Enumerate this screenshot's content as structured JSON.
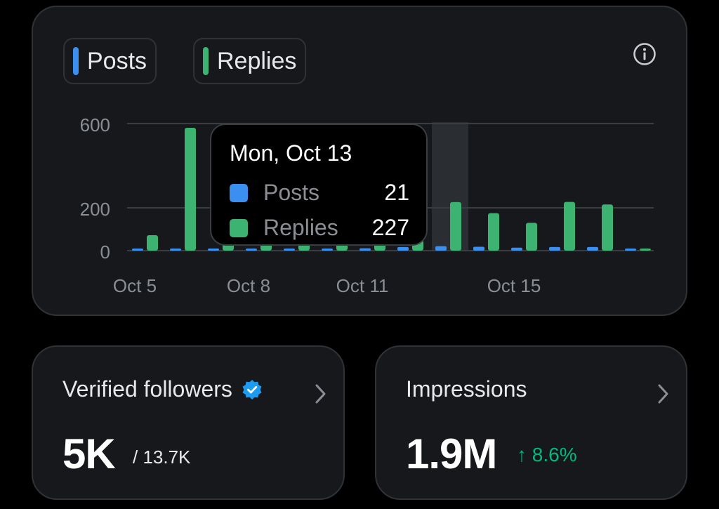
{
  "chart": {
    "legend": [
      {
        "label": "Posts",
        "color": "#3b8ff0"
      },
      {
        "label": "Replies",
        "color": "#3cb371"
      }
    ],
    "y_ticks": [
      "600",
      "200",
      "0"
    ],
    "x_ticks": [
      "Oct 5",
      "Oct 8",
      "Oct 11",
      "Oct 15"
    ],
    "info_icon": "info-icon"
  },
  "chart_data": {
    "type": "bar",
    "categories": [
      "Oct 5",
      "Oct 6",
      "Oct 7",
      "Oct 8",
      "Oct 9",
      "Oct 10",
      "Oct 11",
      "Oct 12",
      "Oct 13",
      "Oct 14",
      "Oct 15",
      "Oct 16",
      "Oct 17",
      "Oct 18"
    ],
    "series": [
      {
        "name": "Posts",
        "values": [
          3,
          3,
          3,
          5,
          10,
          9,
          11,
          17,
          21,
          18,
          14,
          17,
          17,
          2
        ]
      },
      {
        "name": "Replies",
        "values": [
          72,
          580,
          45,
          45,
          45,
          45,
          48,
          50,
          227,
          175,
          130,
          228,
          216,
          10
        ]
      }
    ],
    "ylim": [
      0,
      600
    ],
    "highlighted_category": "Oct 13",
    "grid": true
  },
  "tooltip": {
    "title": "Mon, Oct 13",
    "rows": [
      {
        "label": "Posts",
        "value": "21",
        "color": "#3b8ff0"
      },
      {
        "label": "Replies",
        "value": "227",
        "color": "#3cb371"
      }
    ]
  },
  "followers": {
    "title": "Verified followers",
    "value": "5K",
    "total": "/ 13.7K",
    "badge_icon": "verified-badge-icon"
  },
  "impressions": {
    "title": "Impressions",
    "value": "1.9M",
    "change": "↑ 8.6%",
    "change_color": "#00ba7c"
  }
}
